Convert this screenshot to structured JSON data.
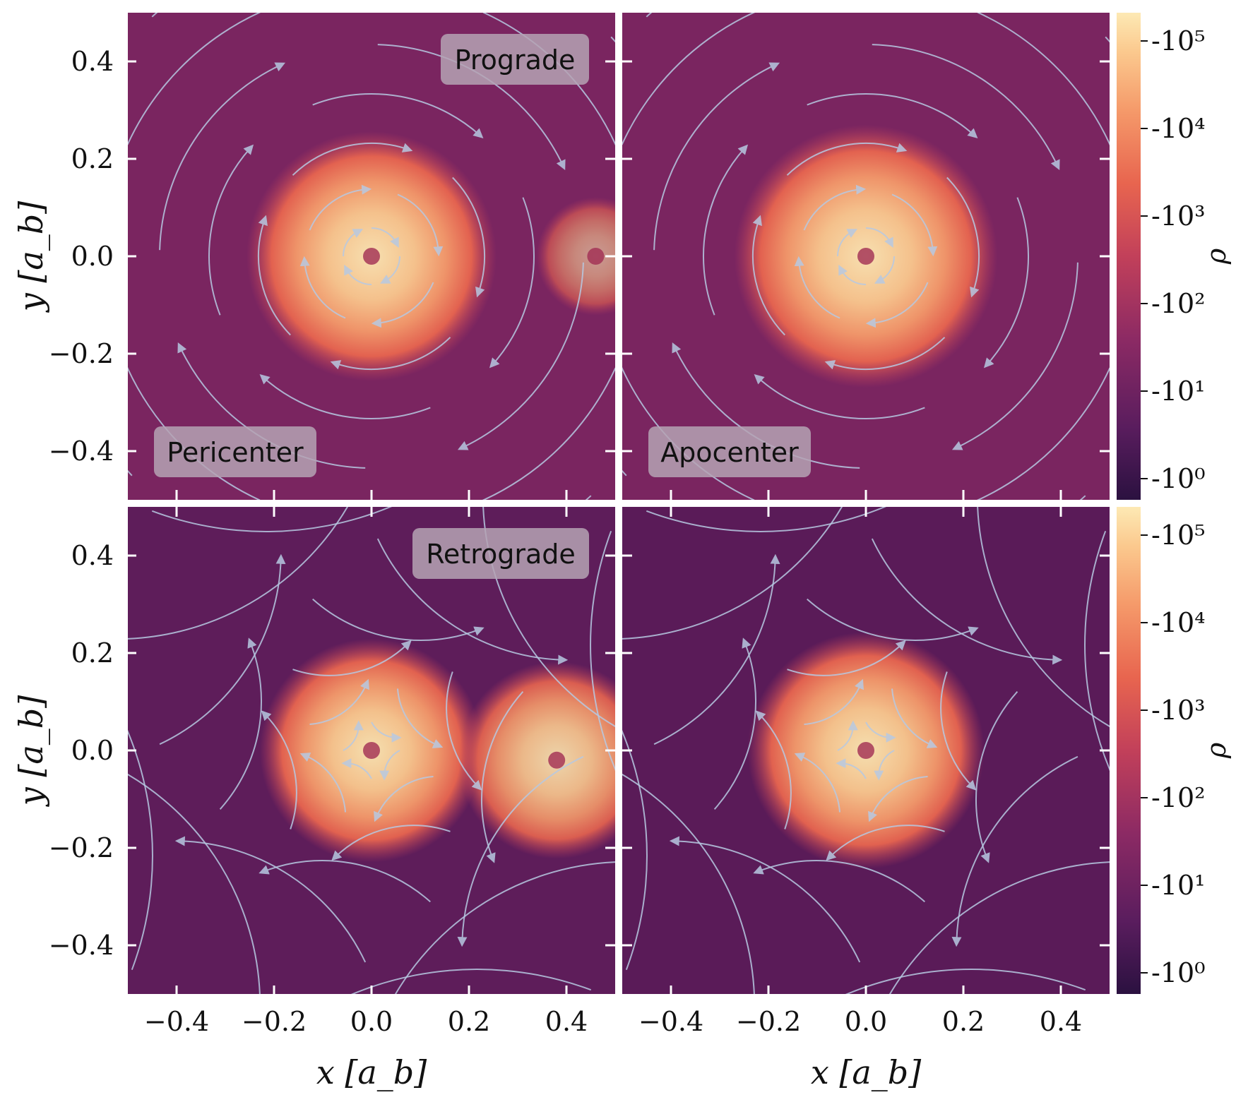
{
  "chart_data": {
    "type": "heatmap",
    "quantity": "gas density with velocity streamlines",
    "colorscale": [
      "#2b1140",
      "#5a1d5e",
      "#8c2a64",
      "#c2405a",
      "#e8654f",
      "#f59a6a",
      "#fbc98e",
      "#fde9b4"
    ],
    "streamline_color": "#b7c9e2",
    "xlabel": "x [a_b]",
    "ylabel": "y [a_b]",
    "xlim": [
      -0.5,
      0.5
    ],
    "ylim": [
      -0.5,
      0.5
    ],
    "xticks": [
      "−0.4",
      "−0.2",
      "0.0",
      "0.2",
      "0.4"
    ],
    "yticks": [
      "0.4",
      "0.2",
      "0.0",
      "−0.2",
      "−0.4"
    ],
    "colorbar": {
      "label": "ρ",
      "scale": "log",
      "ticks": [
        "-10⁰",
        "-10¹",
        "-10²",
        "-10³",
        "-10⁴",
        "-10⁵"
      ]
    },
    "row_labels": [
      "Prograde",
      "Retrograde"
    ],
    "column_labels": [
      "Pericenter",
      "Apocenter"
    ],
    "panels": [
      {
        "row": "Prograde",
        "column": "Pericenter",
        "blobs": [
          {
            "x": 0.0,
            "y": 0.0,
            "r": 0.19,
            "level": 0.95
          },
          {
            "x": 0.46,
            "y": 0.0,
            "r": 0.09,
            "level": 0.6
          }
        ]
      },
      {
        "row": "Prograde",
        "column": "Apocenter",
        "blobs": [
          {
            "x": 0.0,
            "y": 0.0,
            "r": 0.2,
            "level": 0.95
          }
        ]
      },
      {
        "row": "Retrograde",
        "column": "Pericenter",
        "blobs": [
          {
            "x": 0.0,
            "y": 0.0,
            "r": 0.17,
            "level": 0.95
          },
          {
            "x": 0.38,
            "y": -0.02,
            "r": 0.15,
            "level": 0.9
          }
        ]
      },
      {
        "row": "Retrograde",
        "column": "Apocenter",
        "blobs": [
          {
            "x": 0.0,
            "y": 0.0,
            "r": 0.18,
            "level": 0.95
          }
        ]
      }
    ]
  }
}
